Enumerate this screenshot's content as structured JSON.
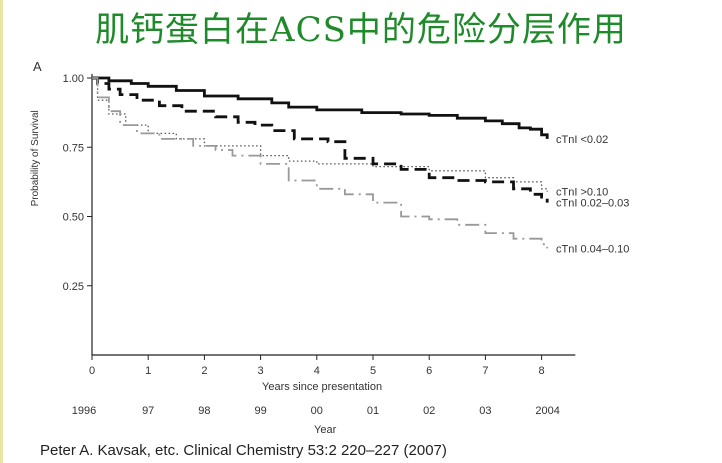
{
  "slide": {
    "title": "肌钙蛋白在ACS中的危险分层作用",
    "citation": "Peter A. Kavsak, etc.  Clinical Chemistry 53:2 220–227 (2007)"
  },
  "chart_data": {
    "type": "line",
    "panel_label": "A",
    "xlabel": "Years since presentation",
    "x2label": "Year",
    "ylabel": "Probability of Survival",
    "xlim": [
      0,
      8.6
    ],
    "ylim": [
      0,
      1.0
    ],
    "x_ticks": [
      0,
      1,
      2,
      3,
      4,
      5,
      6,
      7,
      8
    ],
    "y_ticks": [
      0.25,
      0.5,
      0.75,
      1.0
    ],
    "y_tick_labels": [
      "0.25",
      "0.50",
      "0.75",
      "1.00"
    ],
    "year_ticks": [
      "1996",
      "97",
      "98",
      "99",
      "00",
      "01",
      "02",
      "03",
      "2004"
    ],
    "grid": false,
    "series": [
      {
        "name": "cTnI <0.02",
        "style": "solid",
        "color": "#111111",
        "x": [
          0,
          0.3,
          0.7,
          1.0,
          1.5,
          2.0,
          2.6,
          3.2,
          3.5,
          4.0,
          4.8,
          5.5,
          6.0,
          6.5,
          7.0,
          7.3,
          7.6,
          7.8,
          8.0,
          8.1
        ],
        "y": [
          1.0,
          0.99,
          0.98,
          0.97,
          0.955,
          0.935,
          0.925,
          0.91,
          0.895,
          0.885,
          0.875,
          0.87,
          0.865,
          0.855,
          0.845,
          0.835,
          0.82,
          0.815,
          0.795,
          0.78
        ]
      },
      {
        "name": "cTnI >0.10",
        "style": "dotted",
        "color": "#555555",
        "x": [
          0,
          0.1,
          0.3,
          0.6,
          1.0,
          1.5,
          2.0,
          3.0,
          3.5,
          4.0,
          5.0,
          6.0,
          7.0,
          7.5,
          8.0,
          8.1
        ],
        "y": [
          1.0,
          0.92,
          0.87,
          0.83,
          0.8,
          0.78,
          0.755,
          0.72,
          0.7,
          0.69,
          0.68,
          0.665,
          0.64,
          0.625,
          0.6,
          0.59
        ]
      },
      {
        "name": "cTnI 0.02–0.03",
        "style": "dashed",
        "color": "#111111",
        "x": [
          0,
          0.1,
          0.3,
          0.5,
          0.8,
          1.2,
          1.6,
          2.2,
          2.6,
          2.9,
          3.2,
          3.6,
          4.2,
          4.5,
          5.0,
          5.5,
          6.0,
          6.5,
          7.0,
          7.5,
          7.8,
          8.0,
          8.1
        ],
        "y": [
          1.0,
          0.98,
          0.96,
          0.94,
          0.92,
          0.9,
          0.88,
          0.86,
          0.84,
          0.83,
          0.81,
          0.78,
          0.77,
          0.71,
          0.69,
          0.67,
          0.64,
          0.63,
          0.625,
          0.6,
          0.58,
          0.57,
          0.55
        ]
      },
      {
        "name": "cTnI 0.04–0.10",
        "style": "dashdot",
        "color": "#999999",
        "x": [
          0,
          0.1,
          0.3,
          0.5,
          0.8,
          1.2,
          1.8,
          2.2,
          2.5,
          3.0,
          3.5,
          4.0,
          4.5,
          5.0,
          5.5,
          6.0,
          6.5,
          7.0,
          7.5,
          8.0,
          8.1
        ],
        "y": [
          1.0,
          0.93,
          0.88,
          0.83,
          0.8,
          0.78,
          0.755,
          0.74,
          0.72,
          0.69,
          0.63,
          0.6,
          0.58,
          0.55,
          0.5,
          0.49,
          0.47,
          0.44,
          0.42,
          0.4,
          0.385
        ]
      }
    ]
  }
}
